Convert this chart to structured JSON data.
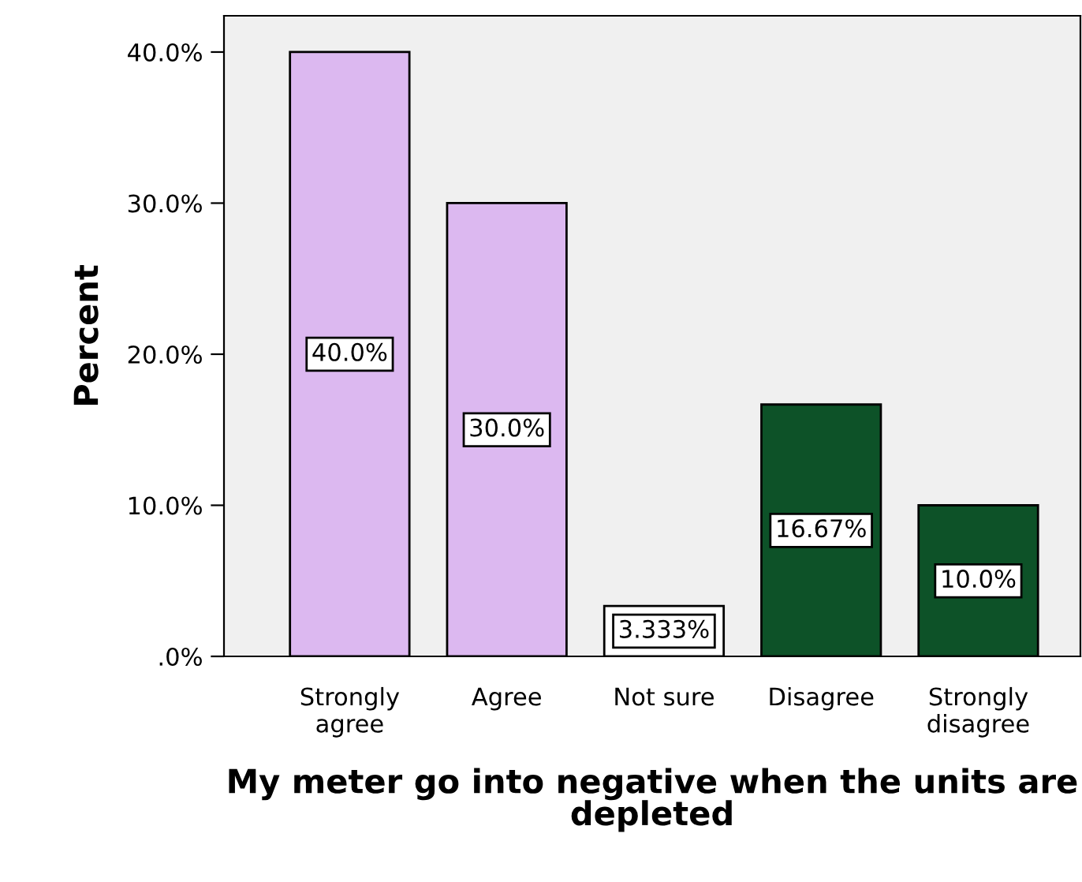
{
  "chart_data": {
    "type": "bar",
    "xlabel": "My meter go into negative when the units are depleted",
    "ylabel": "Percent",
    "categories": [
      "Strongly\nagree",
      "Agree",
      "Not sure",
      "Disagree",
      "Strongly\ndisagree"
    ],
    "values": [
      40,
      30,
      3.333,
      16.67,
      10
    ],
    "colors": [
      "#dcb8f0",
      "#dcb8f0",
      "#ffffff",
      "#0d5228",
      "#0d5228"
    ],
    "value_labels": [
      "40.0%",
      "30.0%",
      "3.333%",
      "16.67%",
      "10.0%"
    ],
    "ylim": [
      0,
      42.4
    ],
    "yticks": [
      {
        "value": 0,
        "label": ".0%"
      },
      {
        "value": 10,
        "label": "10.0%"
      },
      {
        "value": 20,
        "label": "20.0%"
      },
      {
        "value": 30,
        "label": "30.0%"
      },
      {
        "value": 40,
        "label": "40.0%"
      }
    ],
    "grid": false,
    "legend": false
  }
}
